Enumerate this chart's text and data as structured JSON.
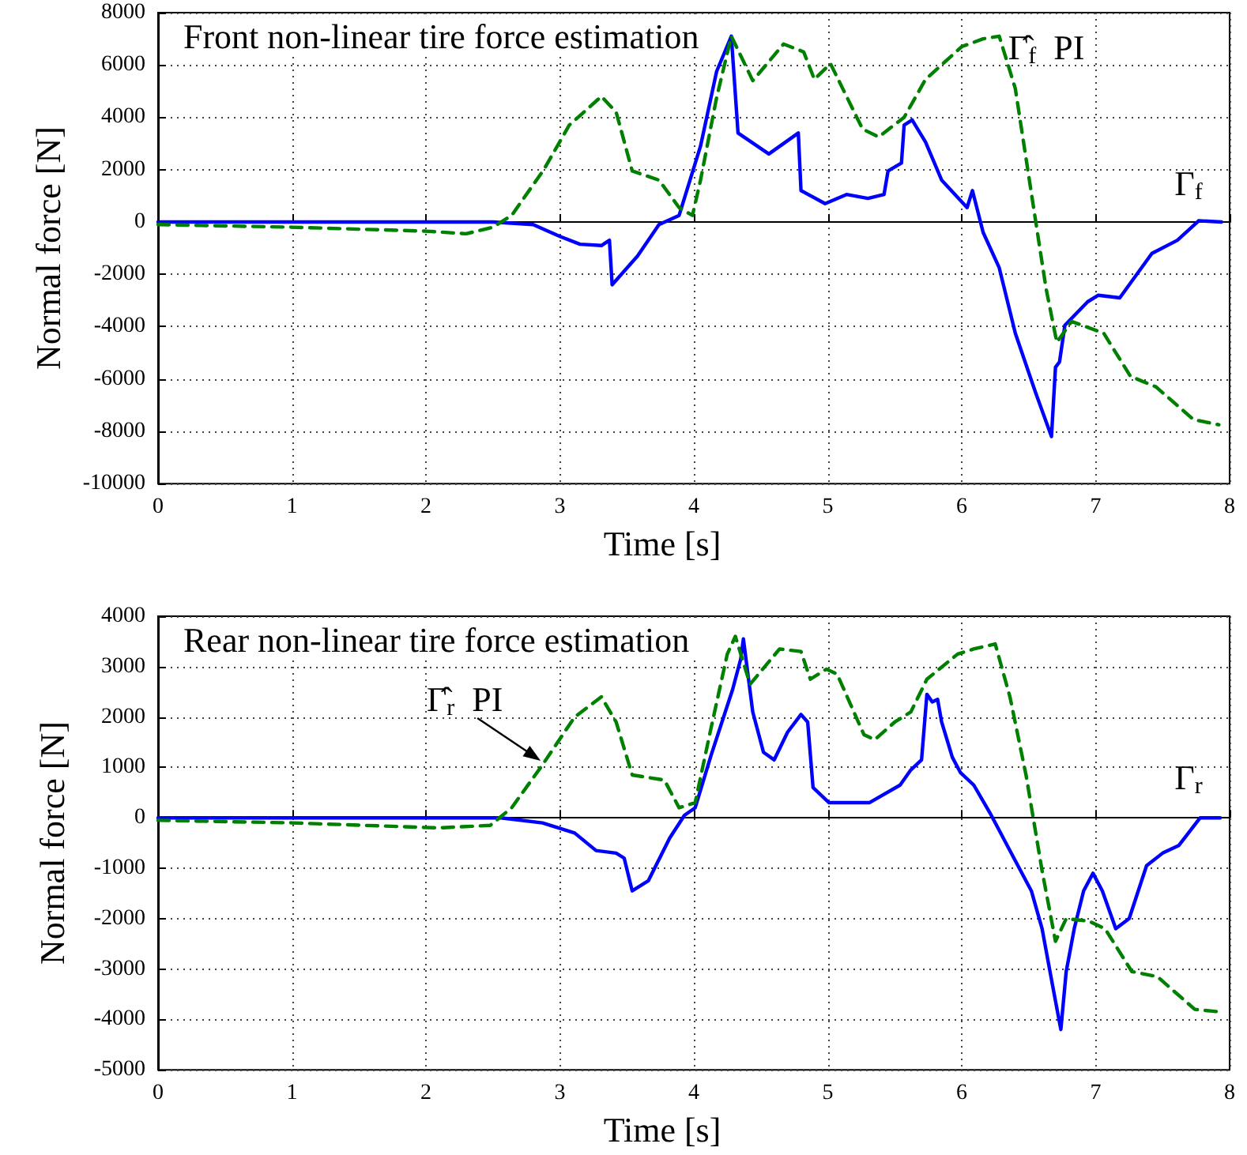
{
  "chart_data": [
    {
      "type": "line",
      "title": "Front non-linear tire force estimation",
      "xlabel": "Time [s]",
      "ylabel": "Normal force [N]",
      "xlim": [
        0,
        8
      ],
      "xticks": [
        0,
        1,
        2,
        3,
        4,
        5,
        6,
        7,
        8
      ],
      "ylim": [
        -10000,
        8000
      ],
      "yticks": [
        -10000,
        -8000,
        -6000,
        -4000,
        -2000,
        0,
        2000,
        4000,
        6000,
        8000
      ],
      "grid": true,
      "marker": "none",
      "series": [
        {
          "color": "#0000ff",
          "line_style": "solid",
          "x": [
            0,
            1,
            2,
            2.5,
            2.8,
            3.0,
            3.15,
            3.31,
            3.37,
            3.39,
            3.58,
            3.74,
            3.89,
            4.05,
            4.17,
            4.28,
            4.33,
            4.56,
            4.78,
            4.8,
            4.98,
            5.14,
            5.3,
            5.42,
            5.45,
            5.55,
            5.57,
            5.63,
            5.73,
            5.85,
            6.04,
            6.08,
            6.16,
            6.28,
            6.4,
            6.55,
            6.67,
            6.7,
            6.73,
            6.77,
            6.94,
            7.02,
            7.18,
            7.42,
            7.61,
            7.77,
            7.94
          ],
          "values": [
            0,
            0,
            0,
            0,
            -100,
            -550,
            -850,
            -900,
            -700,
            -2400,
            -1300,
            -100,
            250,
            2900,
            5750,
            7100,
            3400,
            2600,
            3400,
            1200,
            700,
            1050,
            900,
            1050,
            1950,
            2250,
            3700,
            3900,
            3050,
            1600,
            550,
            1200,
            -400,
            -1750,
            -4250,
            -6500,
            -8200,
            -5550,
            -5350,
            -3950,
            -3050,
            -2800,
            -2900,
            -1200,
            -700,
            50,
            0
          ]
        },
        {
          "color": "#008000",
          "line_style": "dashed",
          "x": [
            0,
            1,
            2,
            2.3,
            2.5,
            2.64,
            2.88,
            3.07,
            3.31,
            3.42,
            3.54,
            3.74,
            3.89,
            3.99,
            4.05,
            4.17,
            4.28,
            4.44,
            4.67,
            4.82,
            4.9,
            5.02,
            5.26,
            5.38,
            5.57,
            5.73,
            6.0,
            6.16,
            6.28,
            6.4,
            6.55,
            6.63,
            6.71,
            6.82,
            7.06,
            7.26,
            7.45,
            7.73,
            7.92
          ],
          "values": [
            -100,
            -200,
            -350,
            -450,
            -200,
            250,
            2000,
            3700,
            4800,
            4200,
            1950,
            1600,
            550,
            250,
            1600,
            4750,
            7100,
            5400,
            6800,
            6500,
            5450,
            6050,
            3550,
            3250,
            4000,
            5450,
            6700,
            7000,
            7100,
            5100,
            100,
            -2550,
            -4600,
            -3800,
            -4250,
            -5900,
            -6300,
            -7550,
            -7750
          ]
        }
      ],
      "annotations": [
        "Γ̂$_{f}$  PI",
        "Γ$_{f}$"
      ]
    },
    {
      "type": "line",
      "title": "Rear non-linear tire force estimation",
      "xlabel": "Time [s]",
      "ylabel": "Normal force [N]",
      "xlim": [
        0,
        8
      ],
      "xticks": [
        0,
        1,
        2,
        3,
        4,
        5,
        6,
        7,
        8
      ],
      "ylim": [
        -5000,
        4000
      ],
      "yticks": [
        -5000,
        -4000,
        -3000,
        -2000,
        -1000,
        0,
        1000,
        2000,
        3000,
        4000
      ],
      "grid": true,
      "marker": "none",
      "series": [
        {
          "color": "#0000ff",
          "line_style": "solid",
          "x": [
            0,
            1,
            2,
            2.56,
            2.87,
            3.11,
            3.27,
            3.42,
            3.48,
            3.54,
            3.66,
            3.82,
            3.93,
            4.01,
            4.13,
            4.29,
            4.35,
            4.37,
            4.44,
            4.52,
            4.6,
            4.7,
            4.8,
            4.85,
            4.89,
            5.01,
            5.31,
            5.54,
            5.62,
            5.7,
            5.74,
            5.78,
            5.82,
            5.85,
            5.93,
            5.99,
            6.09,
            6.21,
            6.29,
            6.4,
            6.52,
            6.6,
            6.68,
            6.74,
            6.78,
            6.84,
            6.91,
            6.98,
            7.05,
            7.15,
            7.25,
            7.38,
            7.5,
            7.62,
            7.78,
            7.93
          ],
          "values": [
            0,
            0,
            0,
            0,
            -100,
            -300,
            -650,
            -700,
            -800,
            -1450,
            -1250,
            -400,
            50,
            200,
            1250,
            2550,
            3150,
            3550,
            2100,
            1300,
            1150,
            1700,
            2050,
            1900,
            600,
            300,
            300,
            650,
            950,
            1150,
            2450,
            2300,
            2350,
            1900,
            1200,
            900,
            650,
            100,
            -300,
            -850,
            -1450,
            -2200,
            -3350,
            -4200,
            -3050,
            -2200,
            -1450,
            -1100,
            -1450,
            -2200,
            -2000,
            -950,
            -700,
            -550,
            0,
            0
          ]
        },
        {
          "color": "#008000",
          "line_style": "dashed",
          "x": [
            0,
            1,
            2.09,
            2.48,
            2.64,
            2.87,
            3.11,
            3.31,
            3.42,
            3.54,
            3.78,
            3.89,
            4.01,
            4.13,
            4.25,
            4.31,
            4.42,
            4.64,
            4.8,
            4.87,
            4.99,
            5.07,
            5.27,
            5.35,
            5.5,
            5.62,
            5.74,
            5.97,
            6.09,
            6.25,
            6.36,
            6.48,
            6.6,
            6.7,
            6.78,
            6.95,
            7.07,
            7.27,
            7.46,
            7.74,
            7.93
          ],
          "values": [
            -50,
            -100,
            -200,
            -150,
            200,
            1050,
            2000,
            2400,
            1900,
            850,
            750,
            200,
            300,
            1800,
            3250,
            3600,
            2650,
            3350,
            3300,
            2750,
            2950,
            2850,
            1650,
            1550,
            1900,
            2100,
            2750,
            3250,
            3350,
            3450,
            2400,
            850,
            -1050,
            -2450,
            -2000,
            -2050,
            -2200,
            -3050,
            -3150,
            -3800,
            -3850
          ]
        }
      ],
      "annotations": [
        {
          "text": "Γ̂$_{r}$  PI",
          "x": 2.88,
          "y": 1100
        },
        "Γ$_{r}$"
      ]
    }
  ]
}
